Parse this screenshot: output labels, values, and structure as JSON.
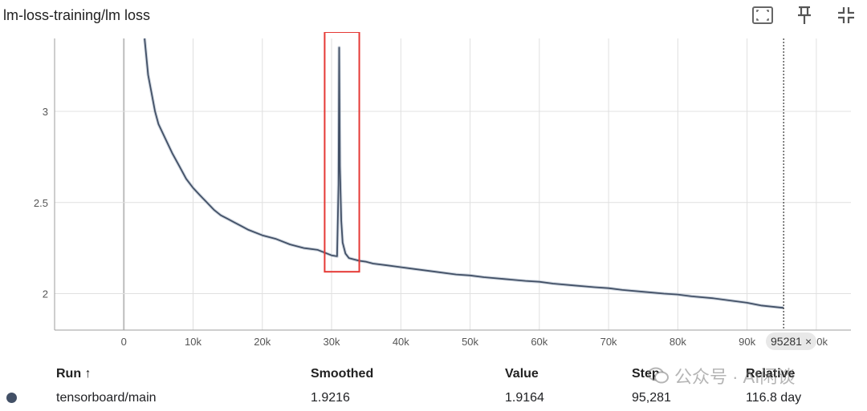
{
  "header": {
    "title": "lm-loss-training/lm loss",
    "icons": [
      "fit-domain-icon",
      "pin-icon",
      "collapse-icon"
    ]
  },
  "step_badge": {
    "value": "95281",
    "close": "×"
  },
  "table": {
    "headers": {
      "run": "Run ↑",
      "smoothed": "Smoothed",
      "value": "Value",
      "step": "Step",
      "relative": "Relative"
    },
    "rows": [
      {
        "color": "#425066",
        "run": "tensorboard/main",
        "smoothed": "1.9216",
        "value": "1.9164",
        "step": "95,281",
        "relative": "116.8 day"
      }
    ]
  },
  "watermark": {
    "text": "公众号 · AI闲谈"
  },
  "chart_data": {
    "type": "line",
    "title": "lm-loss-training/lm loss",
    "xlabel": "",
    "ylabel": "",
    "xlim": [
      -10000,
      105000
    ],
    "ylim": [
      1.8,
      3.4
    ],
    "x_ticks": [
      0,
      10000,
      20000,
      30000,
      40000,
      50000,
      60000,
      70000,
      80000,
      90000,
      100000
    ],
    "x_tick_labels": [
      "0",
      "10k",
      "20k",
      "30k",
      "40k",
      "50k",
      "60k",
      "70k",
      "80k",
      "90k",
      "100k"
    ],
    "y_ticks": [
      2,
      2.5,
      3
    ],
    "y_tick_labels": [
      "2",
      "2.5",
      "3"
    ],
    "grid": true,
    "cursor_step": 95281,
    "highlight_box": {
      "x0": 29000,
      "x1": 34000,
      "y0": 2.12,
      "y1": 3.45,
      "color": "#e53935"
    },
    "series": [
      {
        "name": "tensorboard/main",
        "color": "#425066",
        "x": [
          3000,
          3500,
          4000,
          4500,
          5000,
          6000,
          7000,
          8000,
          9000,
          10000,
          11000,
          12000,
          13000,
          14000,
          15000,
          16000,
          17000,
          18000,
          20000,
          22000,
          24000,
          26000,
          28000,
          29000,
          30000,
          30800,
          31000,
          31100,
          31200,
          31400,
          31600,
          32000,
          32500,
          33000,
          34000,
          35000,
          36000,
          38000,
          40000,
          42000,
          45000,
          48000,
          50000,
          52000,
          55000,
          58000,
          60000,
          62000,
          65000,
          68000,
          70000,
          72000,
          75000,
          78000,
          80000,
          82000,
          85000,
          88000,
          90000,
          92000,
          95281
        ],
        "y": [
          3.4,
          3.2,
          3.1,
          3.0,
          2.93,
          2.85,
          2.77,
          2.7,
          2.63,
          2.58,
          2.54,
          2.5,
          2.46,
          2.43,
          2.41,
          2.39,
          2.37,
          2.35,
          2.32,
          2.3,
          2.27,
          2.25,
          2.24,
          2.225,
          2.21,
          2.205,
          2.6,
          3.35,
          2.7,
          2.4,
          2.28,
          2.22,
          2.195,
          2.19,
          2.18,
          2.175,
          2.165,
          2.155,
          2.145,
          2.135,
          2.12,
          2.105,
          2.1,
          2.09,
          2.08,
          2.07,
          2.065,
          2.055,
          2.045,
          2.035,
          2.03,
          2.02,
          2.01,
          2.0,
          1.995,
          1.985,
          1.975,
          1.96,
          1.95,
          1.935,
          1.9216
        ]
      }
    ]
  }
}
